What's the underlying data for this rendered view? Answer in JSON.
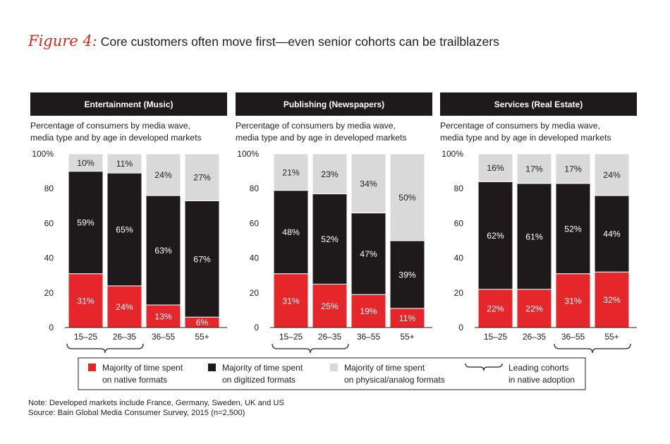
{
  "figure": {
    "label": "Figure 4:",
    "title": "Core customers often move first—even senior cohorts can be trailblazers"
  },
  "colors": {
    "native": "#e5262b",
    "digitized": "#1e1a1c",
    "physical": "#d9d9d9",
    "header_bg": "#1e1a1c",
    "title_red": "#e0251b"
  },
  "chart_data": [
    {
      "type": "bar",
      "stacked": true,
      "title": "Entertainment (Music)",
      "subtitle": [
        "Percentage of consumers by media wave,",
        "media type and by age in developed markets"
      ],
      "categories": [
        "15–25",
        "26–35",
        "36–55",
        "55+"
      ],
      "yticks": [
        "100%",
        "80",
        "60",
        "40",
        "20",
        "0"
      ],
      "ylim": [
        0,
        100
      ],
      "series": [
        {
          "name": "native",
          "values": [
            31,
            24,
            13,
            6
          ],
          "labels": [
            "31%",
            "24%",
            "13%",
            "6%"
          ]
        },
        {
          "name": "digitized",
          "values": [
            59,
            65,
            63,
            67
          ],
          "labels": [
            "59%",
            "65%",
            "63%",
            "67%"
          ]
        },
        {
          "name": "physical",
          "values": [
            10,
            11,
            24,
            27
          ],
          "labels": [
            "10%",
            "11%",
            "24%",
            "27%"
          ]
        }
      ],
      "leading_cohorts": [
        "15–25",
        "26–35"
      ]
    },
    {
      "type": "bar",
      "stacked": true,
      "title": "Publishing (Newspapers)",
      "subtitle": [
        "Percentage of consumers by media wave,",
        "media type and by age in developed markets"
      ],
      "categories": [
        "15–25",
        "26–35",
        "36–55",
        "55+"
      ],
      "yticks": [
        "100%",
        "80",
        "60",
        "40",
        "20",
        "0"
      ],
      "ylim": [
        0,
        100
      ],
      "series": [
        {
          "name": "native",
          "values": [
            31,
            25,
            19,
            11
          ],
          "labels": [
            "31%",
            "25%",
            "19%",
            "11%"
          ]
        },
        {
          "name": "digitized",
          "values": [
            48,
            52,
            47,
            39
          ],
          "labels": [
            "48%",
            "52%",
            "47%",
            "39%"
          ]
        },
        {
          "name": "physical",
          "values": [
            21,
            23,
            34,
            50
          ],
          "labels": [
            "21%",
            "23%",
            "34%",
            "50%"
          ]
        }
      ],
      "leading_cohorts": [
        "15–25",
        "26–35"
      ]
    },
    {
      "type": "bar",
      "stacked": true,
      "title": "Services (Real Estate)",
      "subtitle": [
        "Percentage of consumers by media wave,",
        "media type and by age in developed markets"
      ],
      "categories": [
        "15–25",
        "26–35",
        "36–55",
        "55+"
      ],
      "yticks": [
        "100%",
        "80",
        "60",
        "40",
        "20",
        "0"
      ],
      "ylim": [
        0,
        100
      ],
      "series": [
        {
          "name": "native",
          "values": [
            22,
            22,
            31,
            32
          ],
          "labels": [
            "22%",
            "22%",
            "31%",
            "32%"
          ]
        },
        {
          "name": "digitized",
          "values": [
            62,
            61,
            52,
            44
          ],
          "labels": [
            "62%",
            "61%",
            "52%",
            "44%"
          ]
        },
        {
          "name": "physical",
          "values": [
            16,
            17,
            17,
            24
          ],
          "labels": [
            "16%",
            "17%",
            "17%",
            "24%"
          ]
        }
      ],
      "leading_cohorts": [
        "36–55",
        "55+"
      ]
    }
  ],
  "legend": {
    "native": [
      "Majority of time spent",
      "on native formats"
    ],
    "digitized": [
      "Majority of time spent",
      "on digitized formats"
    ],
    "physical": [
      "Majority of time spent",
      "on physical/analog formats"
    ],
    "brace": [
      "Leading cohorts",
      "in native adoption"
    ]
  },
  "notes": {
    "note": "Note: Developed markets include France, Germany, Sweden, UK and US",
    "source": "Source: Bain Global Media Consumer Survey, 2015 (n=2,500)"
  }
}
